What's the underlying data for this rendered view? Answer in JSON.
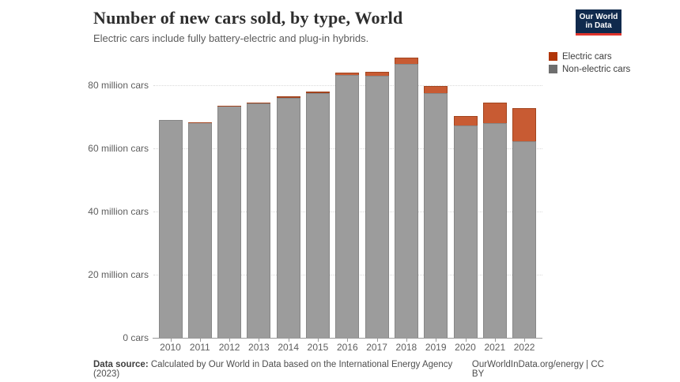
{
  "header": {
    "title": "Number of new cars sold, by type, World",
    "subtitle": "Electric cars include fully battery-electric and plug-in hybrids.",
    "logo": {
      "line1": "Our World",
      "line2": "in Data",
      "bg_color": "#102a4d",
      "accent_color": "#e0342c"
    }
  },
  "legend": {
    "items": [
      {
        "label": "Electric cars",
        "color": "#b13507"
      },
      {
        "label": "Non-electric cars",
        "color": "#6e6e6e"
      }
    ]
  },
  "chart_data": {
    "type": "bar",
    "stacked": true,
    "title": "Number of new cars sold, by type, World",
    "categories": [
      "2010",
      "2011",
      "2012",
      "2013",
      "2014",
      "2015",
      "2016",
      "2017",
      "2018",
      "2019",
      "2020",
      "2021",
      "2022"
    ],
    "series": [
      {
        "name": "Non-electric cars",
        "fill": "#9c9c9c",
        "stroke": "#878787",
        "values": [
          68.9,
          68.2,
          73.4,
          74.2,
          76.1,
          77.5,
          83.3,
          83.1,
          86.7,
          77.5,
          67.2,
          67.9,
          62.3
        ]
      },
      {
        "name": "Electric cars",
        "fill": "#c85b33",
        "stroke": "#a2441e",
        "values": [
          0.01,
          0.05,
          0.12,
          0.2,
          0.3,
          0.55,
          0.75,
          1.2,
          2.1,
          2.3,
          3.0,
          6.6,
          10.5
        ]
      }
    ],
    "unit": "million cars",
    "ylim": [
      0,
      90
    ],
    "yticks": [
      {
        "value": 0,
        "label": "0 cars"
      },
      {
        "value": 20,
        "label": "20 million cars"
      },
      {
        "value": 40,
        "label": "40 million cars"
      },
      {
        "value": 60,
        "label": "60 million cars"
      },
      {
        "value": 80,
        "label": "80 million cars"
      }
    ],
    "grid": "horizontal-dotted",
    "legend_position": "top-right"
  },
  "footer": {
    "source_label": "Data source:",
    "source_text": "Calculated by Our World in Data based on the International Energy Agency (2023)",
    "credit": "OurWorldInData.org/energy | CC BY"
  }
}
